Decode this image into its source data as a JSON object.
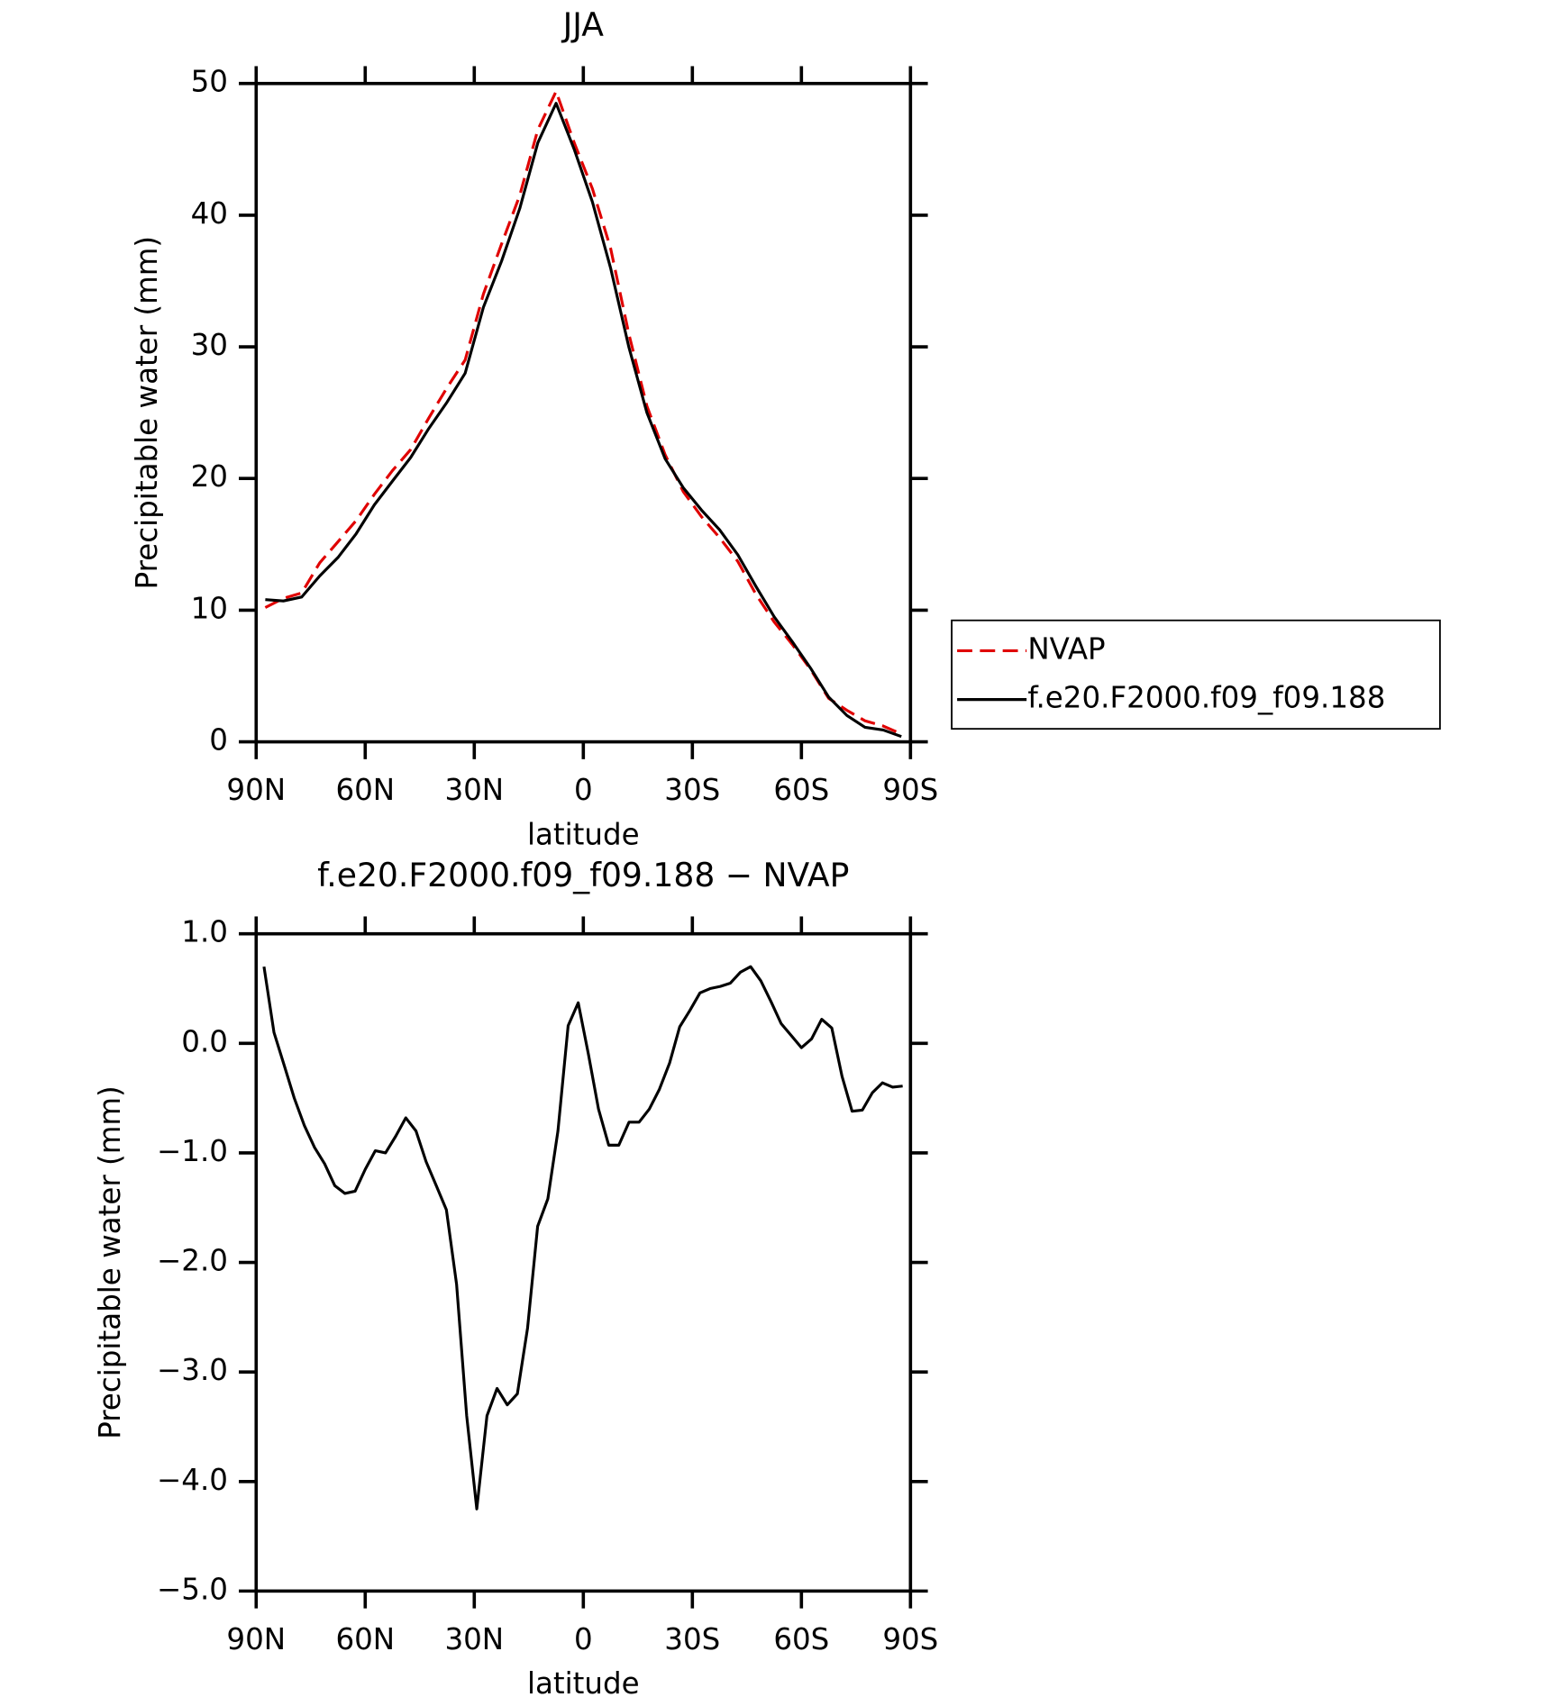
{
  "chart_data": [
    {
      "type": "line",
      "title": "JJA",
      "x_label": "latitude",
      "y_label": "Precipitable water (mm)",
      "x": [
        87.5,
        82.5,
        77.5,
        72.5,
        67.5,
        62.5,
        57.5,
        52.5,
        47.5,
        42.5,
        37.5,
        32.5,
        27.5,
        22.5,
        17.5,
        12.5,
        7.5,
        2.5,
        -2.5,
        -7.5,
        -12.5,
        -17.5,
        -22.5,
        -27.5,
        -32.5,
        -37.5,
        -42.5,
        -47.5,
        -52.5,
        -57.5,
        -62.5,
        -67.5,
        -72.5,
        -77.5,
        -82.5,
        -87.5
      ],
      "series": [
        {
          "name": "NVAP",
          "color": "#e00000",
          "linestyle": "dashed",
          "values": [
            10.2,
            10.9,
            11.3,
            13.6,
            15.2,
            16.8,
            18.8,
            20.6,
            22.2,
            24.6,
            26.9,
            29.0,
            34.0,
            37.8,
            41.5,
            46.5,
            49.4,
            45.5,
            42.0,
            37.5,
            31.0,
            25.5,
            21.8,
            19.0,
            17.1,
            15.5,
            13.7,
            11.2,
            9.1,
            7.4,
            5.5,
            3.3,
            2.4,
            1.6,
            1.2,
            0.6
          ]
        },
        {
          "name": "f.e20.F2000.f09_f09.188",
          "color": "#000000",
          "linestyle": "solid",
          "values": [
            10.8,
            10.7,
            11.0,
            12.6,
            14.0,
            15.8,
            18.0,
            19.8,
            21.6,
            23.8,
            25.8,
            28.0,
            33.0,
            36.5,
            40.5,
            45.5,
            48.5,
            45.0,
            41.0,
            36.0,
            30.0,
            25.0,
            21.5,
            19.3,
            17.6,
            16.1,
            14.2,
            11.8,
            9.5,
            7.6,
            5.6,
            3.4,
            2.0,
            1.1,
            0.9,
            0.4
          ]
        }
      ],
      "xlim": [
        90,
        -90
      ],
      "ylim": [
        0,
        50
      ],
      "xticks": [
        {
          "value": 90,
          "label": "90N"
        },
        {
          "value": 60,
          "label": "60N"
        },
        {
          "value": 30,
          "label": "30N"
        },
        0,
        {
          "value": -30,
          "label": "30S"
        },
        {
          "value": -60,
          "label": "60S"
        },
        {
          "value": -90,
          "label": "90S"
        }
      ],
      "yticks": [
        0,
        10,
        20,
        30,
        40,
        50
      ],
      "legend": "right"
    },
    {
      "type": "line",
      "title": "f.e20.F2000.f09_f09.188 − NVAP",
      "x_label": "latitude",
      "y_label": "Precipitable water (mm)",
      "x": [
        87.86,
        85.1,
        82.31,
        79.53,
        76.74,
        73.95,
        71.16,
        68.37,
        65.58,
        62.79,
        60.0,
        57.21,
        54.42,
        51.63,
        48.84,
        46.04,
        43.25,
        40.46,
        37.67,
        34.88,
        32.09,
        29.3,
        26.51,
        23.72,
        20.93,
        18.14,
        15.35,
        12.56,
        9.77,
        6.98,
        4.19,
        1.4,
        -1.4,
        -4.19,
        -6.98,
        -9.77,
        -12.56,
        -15.35,
        -18.14,
        -20.93,
        -23.72,
        -26.51,
        -29.3,
        -32.09,
        -34.88,
        -37.67,
        -40.46,
        -43.25,
        -46.04,
        -48.84,
        -51.63,
        -54.42,
        -57.21,
        -60.0,
        -62.79,
        -65.58,
        -68.37,
        -71.16,
        -73.95,
        -76.74,
        -79.53,
        -82.31,
        -85.1,
        -87.86
      ],
      "values": [
        0.7,
        0.1,
        -0.2,
        -0.5,
        -0.75,
        -0.95,
        -1.1,
        -1.3,
        -1.37,
        -1.35,
        -1.15,
        -0.98,
        -1.0,
        -0.85,
        -0.68,
        -0.8,
        -1.08,
        -1.3,
        -1.52,
        -2.2,
        -3.4,
        -4.25,
        -3.4,
        -3.15,
        -3.3,
        -3.2,
        -2.6,
        -1.67,
        -1.42,
        -0.8,
        0.16,
        0.37,
        -0.1,
        -0.6,
        -0.93,
        -0.93,
        -0.72,
        -0.72,
        -0.6,
        -0.42,
        -0.18,
        0.15,
        0.3,
        0.46,
        0.5,
        0.52,
        0.55,
        0.65,
        0.7,
        0.57,
        0.38,
        0.18,
        0.07,
        -0.04,
        0.04,
        0.22,
        0.14,
        -0.3,
        -0.62,
        -0.61,
        -0.45,
        -0.36,
        -0.4,
        -0.39
      ],
      "color": "#000000",
      "xlim": [
        90,
        -90
      ],
      "ylim": [
        -5,
        1
      ],
      "xticks": [
        {
          "value": 90,
          "label": "90N"
        },
        {
          "value": 60,
          "label": "60N"
        },
        {
          "value": 30,
          "label": "30N"
        },
        0,
        {
          "value": -30,
          "label": "30S"
        },
        {
          "value": -60,
          "label": "60S"
        },
        {
          "value": -90,
          "label": "90S"
        }
      ],
      "yticks": [
        {
          "value": 1,
          "label": "1.0"
        },
        {
          "value": 0,
          "label": "0.0"
        },
        {
          "value": -1,
          "label": "−1.0"
        },
        {
          "value": -2,
          "label": "−2.0"
        },
        {
          "value": -3,
          "label": "−3.0"
        },
        {
          "value": -4,
          "label": "−4.0"
        },
        {
          "value": -5,
          "label": "−5.0"
        }
      ]
    }
  ]
}
